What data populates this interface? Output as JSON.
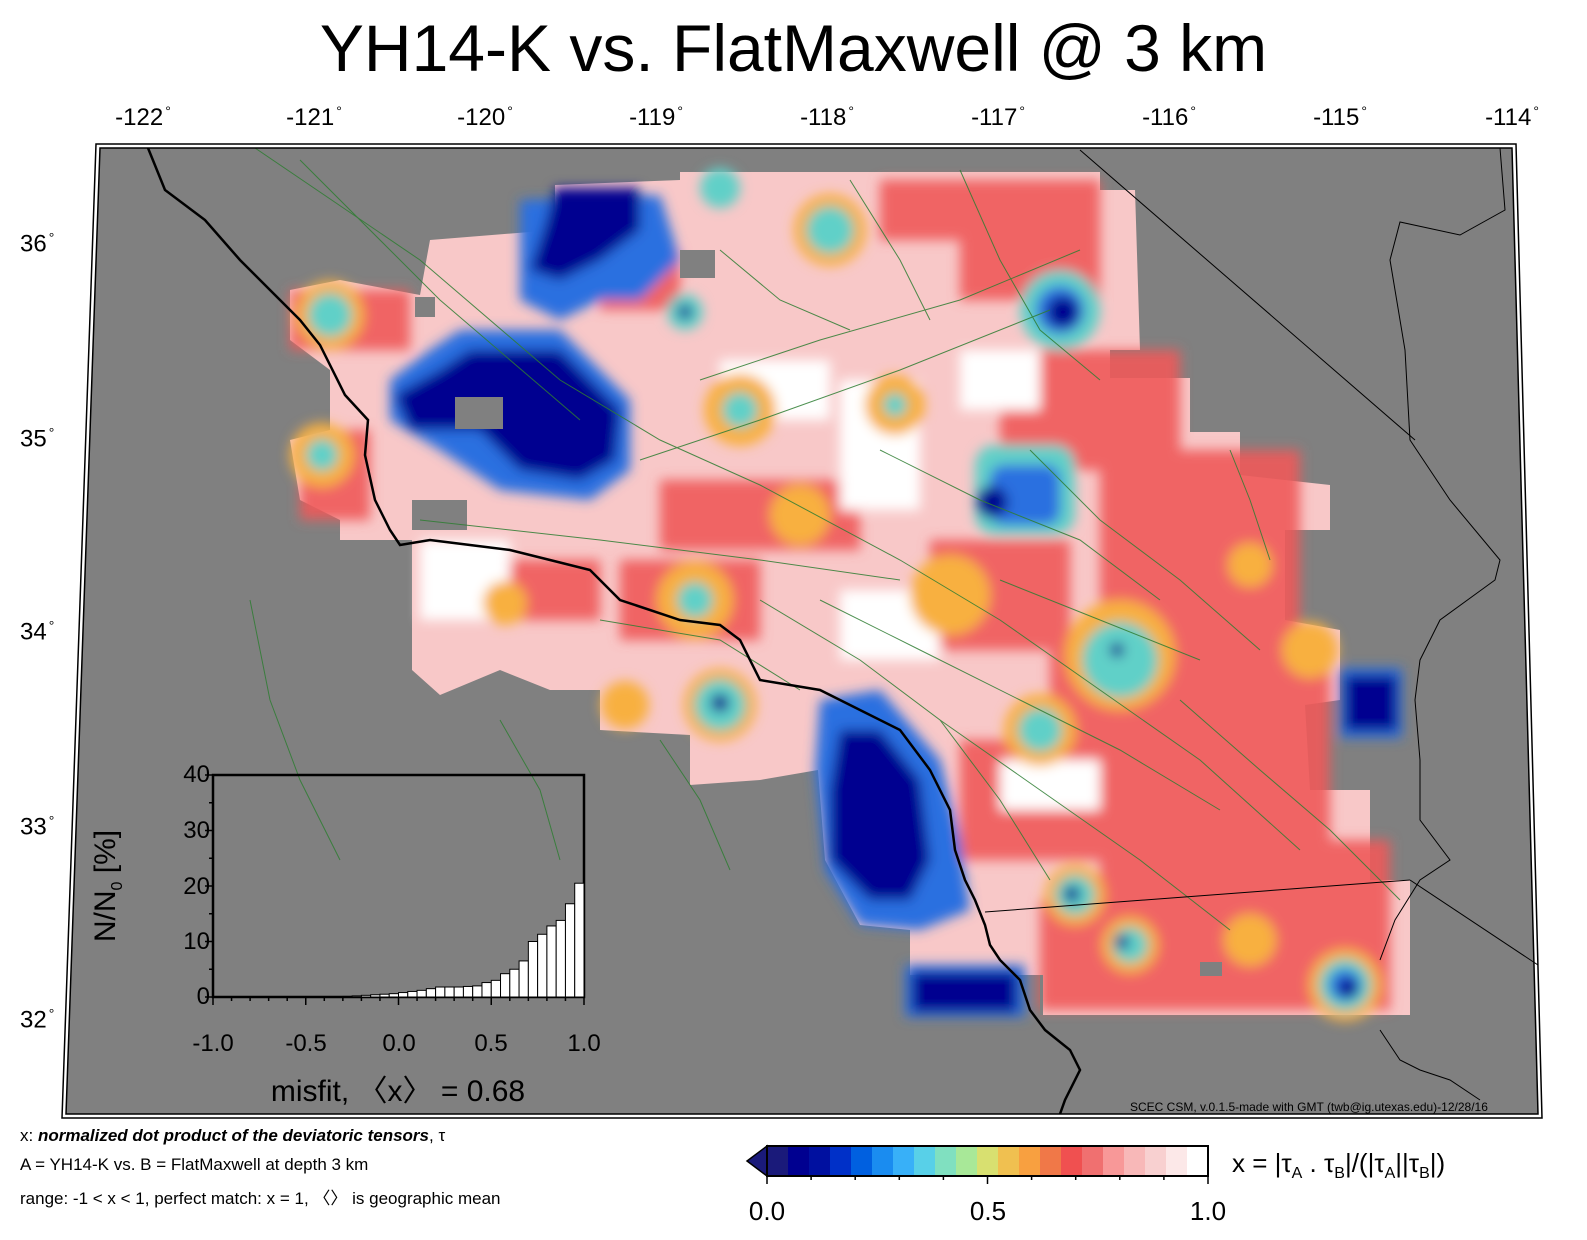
{
  "title": "YH14-K vs. FlatMaxwell @ 3 km",
  "map": {
    "lon_ticks": [
      "-122",
      "-121",
      "-120",
      "-119",
      "-118",
      "-117",
      "-116",
      "-115",
      "-114"
    ],
    "lat_ticks": [
      "36",
      "35",
      "34",
      "33",
      "32"
    ],
    "degree_symbol": "°",
    "colors": {
      "background": "#808080",
      "coastline": "#000000",
      "faults": "#2e7d32"
    },
    "credit": "SCEC CSM, v.0.1.5-made with GMT (twb@ig.utexas.edu)-12/28/16"
  },
  "histogram": {
    "ylabel_main": "N/N",
    "ylabel_sub": "0",
    "ylabel_unit": " [%]",
    "y_ticks": [
      "0",
      "10",
      "20",
      "30",
      "40"
    ],
    "x_ticks": [
      "-1.0",
      "-0.5",
      "0.0",
      "0.5",
      "1.0"
    ],
    "xlabel": "misfit, 〈x〉 = 0.68",
    "chart_data": {
      "type": "bar",
      "bin_width": 0.05,
      "bin_centers": [
        -0.975,
        -0.925,
        -0.875,
        -0.825,
        -0.775,
        -0.725,
        -0.675,
        -0.625,
        -0.575,
        -0.525,
        -0.475,
        -0.425,
        -0.375,
        -0.325,
        -0.275,
        -0.225,
        -0.175,
        -0.125,
        -0.075,
        -0.025,
        0.025,
        0.075,
        0.125,
        0.175,
        0.225,
        0.275,
        0.325,
        0.375,
        0.425,
        0.475,
        0.525,
        0.575,
        0.625,
        0.675,
        0.725,
        0.775,
        0.825,
        0.875,
        0.925,
        0.975
      ],
      "values": [
        0,
        0,
        0,
        0,
        0,
        0,
        0,
        0,
        0,
        0,
        0,
        0,
        0,
        0,
        0.1,
        0.2,
        0.3,
        0.4,
        0.5,
        0.6,
        0.8,
        1,
        1.2,
        1.5,
        1.8,
        1.8,
        1.8,
        1.9,
        2,
        2.6,
        3,
        4.2,
        5,
        6.5,
        10,
        11.3,
        12.8,
        13.8,
        16.8,
        20.5
      ],
      "xlim": [
        -1.0,
        1.0
      ],
      "ylim": [
        0,
        40
      ]
    }
  },
  "notes": {
    "line1_prefix": "x: ",
    "line1_bold": "normalized dot product of the deviatoric tensors",
    "line1_suffix": ", τ",
    "line2": "A = YH14-K vs.  B = FlatMaxwell at depth 3 km",
    "line3": "range: -1 < x < 1, perfect match: x = 1, 〈〉 is geographic mean"
  },
  "colorbar": {
    "ticks": [
      "0.0",
      "0.5",
      "1.0"
    ],
    "range": [
      0.0,
      1.0
    ],
    "colors": [
      "#1a1a7a",
      "#000090",
      "#0010a0",
      "#0030c8",
      "#0060e0",
      "#1a8cf0",
      "#38b0f8",
      "#58d0e8",
      "#80e0c0",
      "#a8e898",
      "#d8e070",
      "#f0c050",
      "#f8a040",
      "#f07848",
      "#f05050",
      "#f07070",
      "#f89898",
      "#f8b8b8",
      "#f8d0d0",
      "#fce8e8",
      "#ffffff"
    ],
    "formula": "x = |τA . τB|/(|τA||τB|)"
  }
}
